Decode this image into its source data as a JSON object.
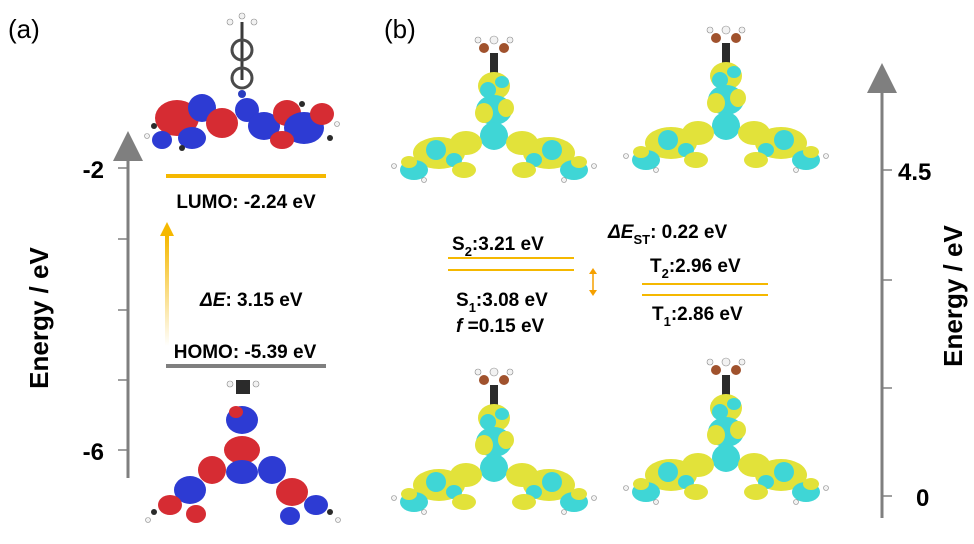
{
  "panel_a": {
    "label": "(a)",
    "axis_label": "Energy / eV",
    "ticks": [
      "-2",
      "-6"
    ],
    "lumo_label": "LUMO: -2.24 eV",
    "homo_label": "HOMO: -5.39 eV",
    "gap_symbol": "ΔE",
    "gap_value": ": 3.15 eV",
    "colors": {
      "lumo_level": "#f5b800",
      "homo_level": "#7f7f7f",
      "orbital_pos": "#d62c33",
      "orbital_neg": "#2d3bd3",
      "gap_arrow": "#f5b800"
    }
  },
  "panel_b": {
    "label": "(b)",
    "axis_label": "Energy / eV",
    "ticks": [
      "4.5",
      "0"
    ],
    "s2": {
      "letter": "S",
      "sub": "2",
      "value": ":3.21 eV"
    },
    "s1": {
      "letter": "S",
      "sub": "1",
      "value": ":3.08 eV"
    },
    "osc": {
      "letter": "f",
      "value": " =0.15 eV"
    },
    "dest": {
      "symbol": "ΔE",
      "sub": "ST",
      "value": ": 0.22 eV"
    },
    "t2": {
      "letter": "T",
      "sub": "2",
      "value": ":2.96 eV"
    },
    "t1": {
      "letter": "T",
      "sub": "1",
      "value": ":2.86 eV"
    },
    "colors": {
      "level": "#f5b800",
      "density_yellow": "#e2e23a",
      "density_cyan": "#3fd6d6",
      "arrow": "#f5a000"
    }
  }
}
